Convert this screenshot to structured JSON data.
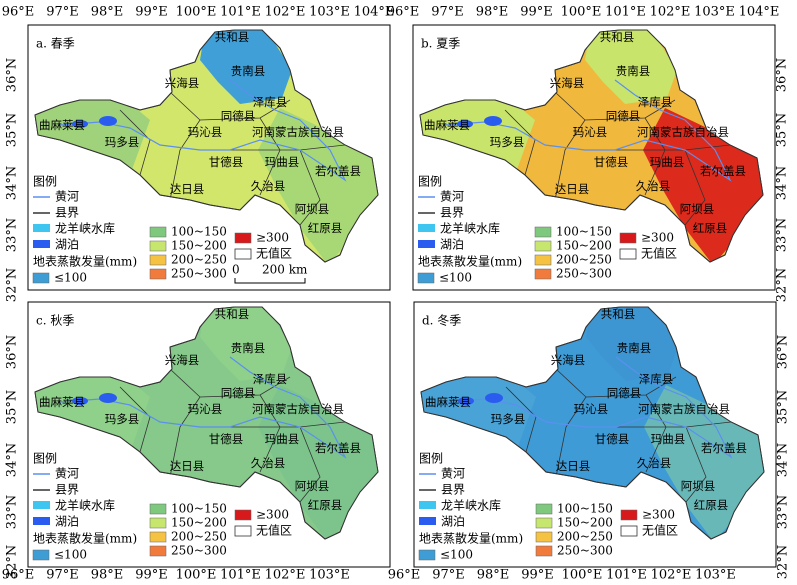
{
  "panels": [
    {
      "label": "a. 春季"
    },
    {
      "label": "b. 夏季"
    },
    {
      "label": "c. 秋季"
    },
    {
      "label": "d. 冬季"
    }
  ],
  "counties": [
    "共和县",
    "贵南县",
    "兴海县",
    "同德县",
    "泽库县",
    "曲麻莱县",
    "玛沁县",
    "河南蒙古族自治县",
    "玛多县",
    "甘德县",
    "玛曲县",
    "若尔盖县",
    "达日县",
    "久治县",
    "阿坝县",
    "红原县"
  ],
  "legend": {
    "title": "图例",
    "river": "黄河",
    "county_border": "县界",
    "reservoir": "龙羊峡水库",
    "lake": "湖泊",
    "et_title": "地表蒸散发量(mm)",
    "classes": [
      "≤100",
      "100~150",
      "150~200",
      "200~250",
      "250~300",
      "≥300"
    ],
    "no_value": "无值区"
  },
  "scale_bar": [
    "0",
    "200 km"
  ],
  "x_ticks_top": [
    "96°E",
    "97°E",
    "98°E",
    "99°E",
    "100°E",
    "101°E",
    "102°E",
    "103°E",
    "104°E"
  ],
  "x_ticks_bottom": [
    "96°E",
    "97°E",
    "98°E",
    "99°E",
    "100°E",
    "101°E",
    "102°E",
    "103°E"
  ],
  "y_ticks": [
    "36°N",
    "35°N",
    "34°N",
    "33°N",
    "32°N"
  ]
}
